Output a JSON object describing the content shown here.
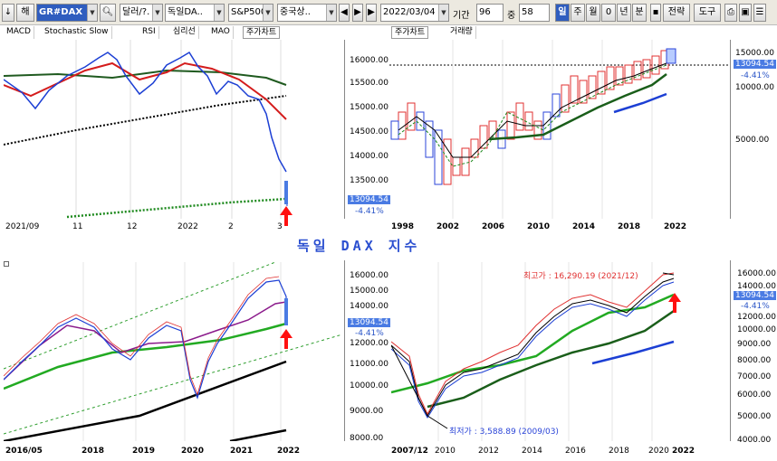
{
  "toolbar": {
    "arrow_down": "↓",
    "market": "해",
    "symbol": "GR#DAX",
    "currency": "달러/?.",
    "index_name": "독일DA..",
    "index_cmp": "S&P500",
    "country": "중국상..",
    "date": "2022/03/04",
    "period_label": "기간",
    "period_value": "96",
    "mid_label": "중",
    "mid_value": "58",
    "units": [
      "일",
      "주",
      "월",
      "0",
      "년",
      "분"
    ],
    "strategy": "전략",
    "tools": "도구"
  },
  "panel_tl": {
    "tabs": [
      "MACD",
      "Stochastic Slow",
      "RSI",
      "심리선",
      "MAO",
      "주가차트"
    ],
    "prices": [
      "16000.00",
      "15500.00",
      "15000.00",
      "14500.00",
      "14000.00",
      "13500.00"
    ],
    "current": "13094.54",
    "pct": "-4.41%",
    "xlabels": [
      "2021/09",
      "11",
      "12",
      "2022",
      "2",
      "3"
    ]
  },
  "panel_tr": {
    "tabs": [
      "주가차트",
      "거래량"
    ],
    "prices": [
      "15000.00",
      "10000.00",
      "5000.00"
    ],
    "current": "13094.54",
    "pct": "-4.41%",
    "xlabels": [
      "1998",
      "2002",
      "2006",
      "2010",
      "2014",
      "2018",
      "2022"
    ]
  },
  "title": "독일 DAX 지수",
  "panel_bl": {
    "prices": [
      "16000.00",
      "15000.00",
      "14000.00",
      "13000.00",
      "12000.00",
      "11000.00",
      "10000.00",
      "9000.00",
      "8000.00"
    ],
    "current": "13094.54",
    "pct": "-4.41%",
    "xlabels": [
      "2016/05",
      "2018",
      "2019",
      "2020",
      "2021",
      "2022"
    ]
  },
  "panel_br": {
    "prices": [
      "16000.00",
      "14000.00",
      "12000.00",
      "10000.00",
      "9000.00",
      "8000.00",
      "7000.00",
      "6000.00",
      "5000.00",
      "4000.00"
    ],
    "current": "13094.54",
    "pct": "-4.41%",
    "high_label": "최고가 : 16,290.19 (2021/12)",
    "low_label": "최저가 : 3,588.89 (2009/03)",
    "xlabels": [
      "2007/12",
      "2010",
      "2012",
      "2014",
      "2016",
      "2018",
      "2020",
      "2022"
    ]
  },
  "colors": {
    "accent": "#2f5dbf",
    "up": "#e03030",
    "down": "#2b45d8",
    "ma_green": "#1e9e1e",
    "arrow": "#ff1010"
  }
}
